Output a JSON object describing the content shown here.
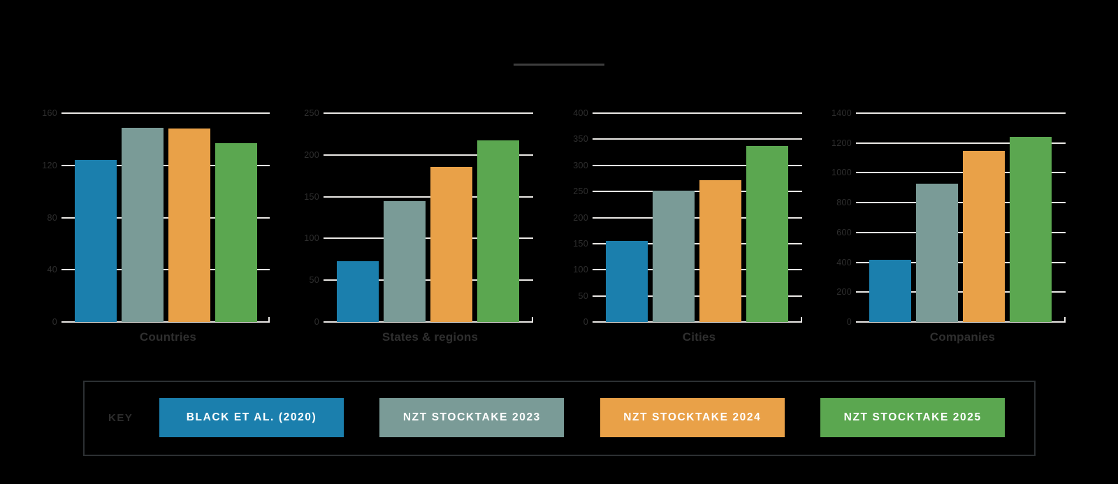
{
  "background_color": "#000000",
  "title_divider": {
    "present": true,
    "color": "#3d3d3d"
  },
  "palette": {
    "gridline": "#eae8e5",
    "axis_text": "#2e2e2e",
    "category_text": "#2f2f2f",
    "key_border": "#2c3033",
    "key_text": "#2d2d2d",
    "swatch_text": "#ffffff"
  },
  "key": {
    "label": "KEY"
  },
  "chart_data": {
    "type": "bar",
    "layout": "small-multiples",
    "grid": true,
    "legend_position": "bottom",
    "categories": [
      "Countries",
      "States & regions",
      "Cities",
      "Companies"
    ],
    "series": [
      {
        "name": "BLACK ET AL. (2020)",
        "color": "#1b7fad",
        "values": [
          124,
          73,
          155,
          417
        ]
      },
      {
        "name": "NZT STOCKTAKE 2023",
        "color": "#7a9b97",
        "values": [
          149,
          145,
          252,
          929
        ]
      },
      {
        "name": "NZT STOCKTAKE 2024",
        "color": "#e9a148",
        "values": [
          148,
          186,
          271,
          1145
        ]
      },
      {
        "name": "NZT STOCKTAKE 2025",
        "color": "#5ba750",
        "values": [
          137,
          217,
          337,
          1243
        ]
      }
    ],
    "panels": [
      {
        "category": "Countries",
        "ylim": [
          0,
          160
        ],
        "yticks": [
          0,
          40,
          80,
          120,
          160
        ]
      },
      {
        "category": "States & regions",
        "ylim": [
          0,
          250
        ],
        "yticks": [
          0,
          50,
          100,
          150,
          200,
          250
        ]
      },
      {
        "category": "Cities",
        "ylim": [
          0,
          400
        ],
        "yticks": [
          0,
          50,
          100,
          150,
          200,
          250,
          300,
          350,
          400
        ]
      },
      {
        "category": "Companies",
        "ylim": [
          0,
          1400
        ],
        "yticks": [
          0,
          200,
          400,
          600,
          800,
          1000,
          1200,
          1400
        ]
      }
    ]
  }
}
